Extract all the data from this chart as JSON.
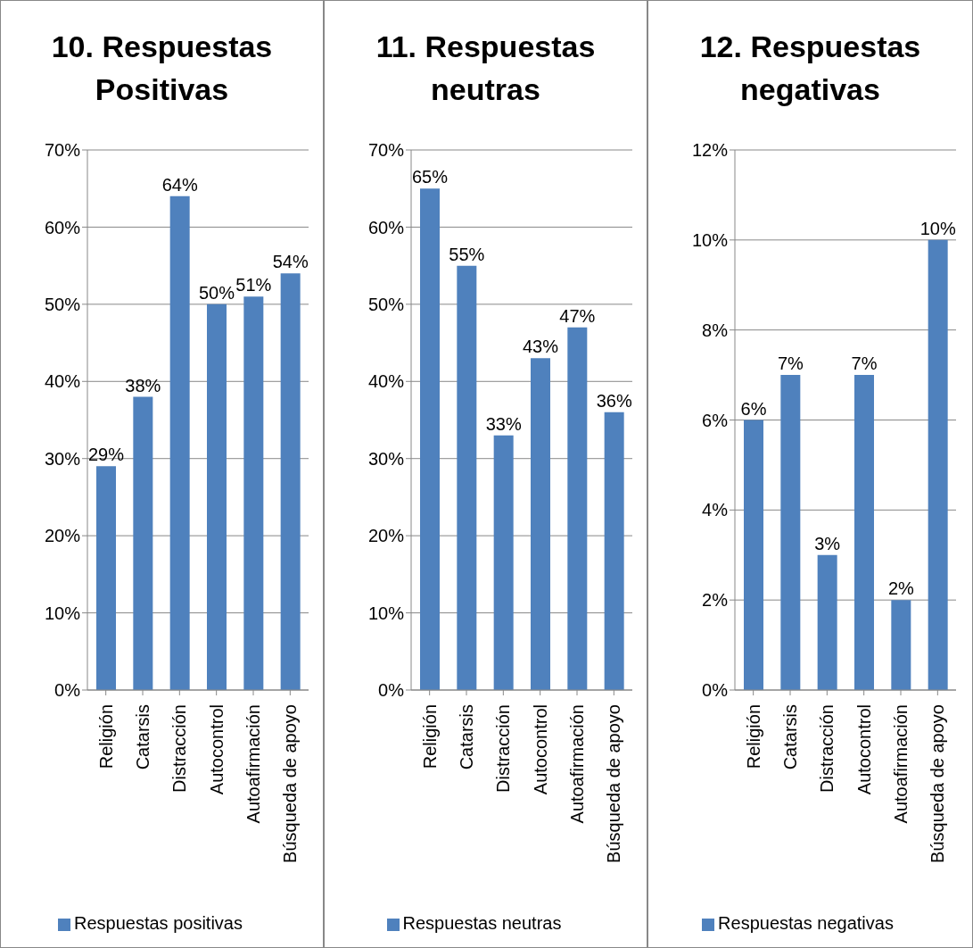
{
  "chart_data": [
    {
      "type": "bar",
      "title": "10. Respuestas Positivas",
      "categories": [
        "Religión",
        "Catarsis",
        "Distracción",
        "Autocontrol",
        "Autoafirmación",
        "Búsqueda de apoyo"
      ],
      "series": [
        {
          "name": "Respuestas positivas",
          "color": "#4f81bd",
          "values": [
            29,
            38,
            64,
            50,
            51,
            54
          ],
          "value_labels": [
            "29%",
            "38%",
            "64%",
            "50%",
            "51%",
            "54%"
          ]
        }
      ],
      "ylim": [
        0,
        70
      ],
      "yticks": [
        {
          "value": 0,
          "label": "0%"
        },
        {
          "value": 10,
          "label": "10%"
        },
        {
          "value": 20,
          "label": "20%"
        },
        {
          "value": 30,
          "label": "30%"
        },
        {
          "value": 40,
          "label": "40%"
        },
        {
          "value": 50,
          "label": "50%"
        },
        {
          "value": 60,
          "label": "60%"
        },
        {
          "value": 70,
          "label": "70%"
        }
      ],
      "grid": "y",
      "legend": "bottom"
    },
    {
      "type": "bar",
      "title": "11. Respuestas neutras",
      "categories": [
        "Religión",
        "Catarsis",
        "Distracción",
        "Autocontrol",
        "Autoafirmación",
        "Búsqueda de apoyo"
      ],
      "series": [
        {
          "name": "Respuestas neutras",
          "color": "#4f81bd",
          "values": [
            65,
            55,
            33,
            43,
            47,
            36
          ],
          "value_labels": [
            "65%",
            "55%",
            "33%",
            "43%",
            "47%",
            "36%"
          ]
        }
      ],
      "ylim": [
        0,
        70
      ],
      "yticks": [
        {
          "value": 0,
          "label": "0%"
        },
        {
          "value": 10,
          "label": "10%"
        },
        {
          "value": 20,
          "label": "20%"
        },
        {
          "value": 30,
          "label": "30%"
        },
        {
          "value": 40,
          "label": "40%"
        },
        {
          "value": 50,
          "label": "50%"
        },
        {
          "value": 60,
          "label": "60%"
        },
        {
          "value": 70,
          "label": "70%"
        }
      ],
      "grid": "y",
      "legend": "bottom"
    },
    {
      "type": "bar",
      "title": "12. Respuestas negativas",
      "categories": [
        "Religión",
        "Catarsis",
        "Distracción",
        "Autocontrol",
        "Autoafirmación",
        "Búsqueda de apoyo"
      ],
      "series": [
        {
          "name": "Respuestas negativas",
          "color": "#4f81bd",
          "values": [
            6,
            7,
            3,
            7,
            2,
            10
          ],
          "value_labels": [
            "6%",
            "7%",
            "3%",
            "7%",
            "2%",
            "10%"
          ]
        }
      ],
      "ylim": [
        0,
        12
      ],
      "yticks": [
        {
          "value": 0,
          "label": "0%"
        },
        {
          "value": 2,
          "label": "2%"
        },
        {
          "value": 4,
          "label": "4%"
        },
        {
          "value": 6,
          "label": "6%"
        },
        {
          "value": 8,
          "label": "8%"
        },
        {
          "value": 10,
          "label": "10%"
        },
        {
          "value": 12,
          "label": "12%"
        }
      ],
      "grid": "y",
      "legend": "bottom"
    }
  ]
}
